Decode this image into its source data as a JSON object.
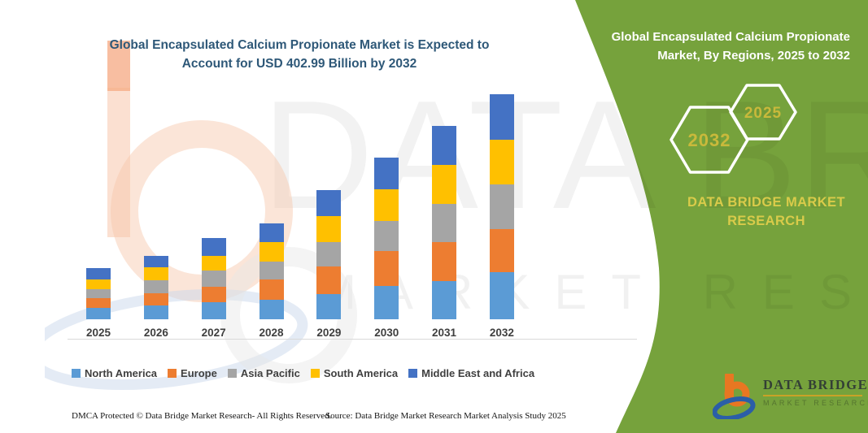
{
  "header": {
    "title": "Global Encapsulated Calcium Propionate Market is Expected to Account for USD 402.99 Billion by 2032"
  },
  "chart_data": {
    "type": "bar",
    "stacked": true,
    "title": "Global Encapsulated Calcium Propionate Market is Expected to Account for USD 402.99 Billion by 2032",
    "xlabel": "",
    "ylabel": "",
    "unit": "USD Billion (values estimated from bar heights; 2032 total = 402.99)",
    "ylim": [
      0,
      420
    ],
    "grid": false,
    "legend_position": "bottom",
    "categories": [
      "2025",
      "2026",
      "2027",
      "2028",
      "2029",
      "2030",
      "2031",
      "2032"
    ],
    "series": [
      {
        "name": "North America",
        "color": "#5B9BD5",
        "values": [
          20.4,
          24.7,
          30.6,
          34.9,
          45.1,
          59.7,
          68.4,
          84.4
        ]
      },
      {
        "name": "Europe",
        "color": "#ED7D31",
        "values": [
          17.5,
          21.8,
          27.6,
          36.4,
          49.5,
          62.6,
          69.8,
          77.1
        ]
      },
      {
        "name": "Asia Pacific",
        "color": "#A5A5A5",
        "values": [
          16.0,
          23.3,
          29.1,
          32.0,
          43.7,
          53.8,
          68.4,
          80.0
        ]
      },
      {
        "name": "South America",
        "color": "#FFC000",
        "values": [
          17.5,
          23.3,
          26.2,
          34.9,
          46.6,
          56.7,
          69.8,
          80.0
        ]
      },
      {
        "name": "Middle East and Africa",
        "color": "#4472C4",
        "values": [
          20.4,
          20.4,
          32.0,
          33.5,
          46.6,
          56.7,
          69.8,
          81.5
        ]
      }
    ],
    "totals": [
      91.8,
      113.5,
      145.5,
      171.7,
      231.5,
      289.5,
      346.2,
      403.0
    ]
  },
  "side_panel": {
    "title": "Global Encapsulated Calcium Propionate Market, By Regions, 2025 to 2032",
    "hexagons": [
      {
        "label": "2032"
      },
      {
        "label": "2025"
      }
    ],
    "brand_text": "DATA BRIDGE MARKET RESEARCH",
    "colors": {
      "panel_green": "#76A23C",
      "hex_border": "#FFFFFF",
      "accent_gold": "#C9B93B",
      "brand_yellow": "#D9CB4A"
    }
  },
  "watermarks": {
    "brand_big": "DATA BRIDGE",
    "brand_row": "MARKET RESEARCH"
  },
  "footer": {
    "left": "DMCA Protected © Data Bridge Market Research-  All Rights Reserved.",
    "right": "Source: Data Bridge Market Research  Market Analysis Study 2025"
  },
  "logo": {
    "name": "DATA BRIDGE",
    "subtext": "MARKET RESEARCH"
  }
}
